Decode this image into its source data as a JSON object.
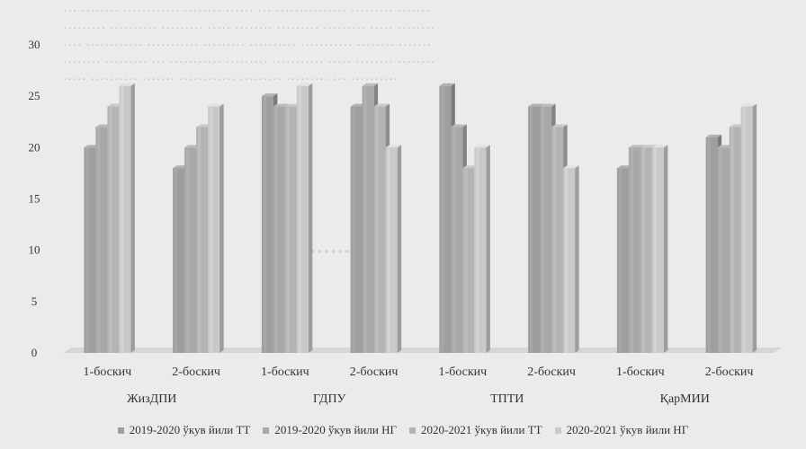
{
  "chart_data": {
    "type": "bar",
    "title": "",
    "xlabel": "",
    "ylabel": "",
    "ylim": [
      0,
      30
    ],
    "yticks": [
      0,
      5,
      10,
      15,
      20,
      25,
      30
    ],
    "grid": false,
    "legend_position": "bottom",
    "groups": [
      {
        "name": "ЖизДПИ",
        "categories": [
          "1-боскич",
          "2-боскич"
        ]
      },
      {
        "name": "ГДПУ",
        "categories": [
          "1-боскич",
          "2-боскич"
        ]
      },
      {
        "name": "ТПТИ",
        "categories": [
          "1-боскич",
          "2-боскич"
        ]
      },
      {
        "name": "ҚарМИИ",
        "categories": [
          "1-боскич",
          "2-боскич"
        ]
      }
    ],
    "categories": [
      "ЖизДПИ 1-боскич",
      "ЖизДПИ 2-боскич",
      "ГДПУ 1-боскич",
      "ГДПУ 2-боскич",
      "ТПТИ 1-боскич",
      "ТПТИ 2-боскич",
      "ҚарМИИ 1-боскич",
      "ҚарМИИ 2-боскич"
    ],
    "series": [
      {
        "name": "2019-2020 ўкув йили ТТ",
        "color": "#9e9e9e",
        "values": [
          20,
          18,
          25,
          24,
          26,
          24,
          18,
          21
        ]
      },
      {
        "name": "2019-2020 ўкув йили НГ",
        "color": "#a8a8a8",
        "values": [
          22,
          20,
          24,
          26,
          22,
          24,
          20,
          20
        ]
      },
      {
        "name": "2020-2021 ўкув йили ТТ",
        "color": "#b4b4b4",
        "values": [
          24,
          22,
          24,
          24,
          18,
          22,
          20,
          22
        ]
      },
      {
        "name": "2020-2021 ўкув йили НГ",
        "color": "#c9c9c9",
        "values": [
          26,
          24,
          26,
          20,
          20,
          18,
          20,
          24
        ]
      }
    ]
  }
}
